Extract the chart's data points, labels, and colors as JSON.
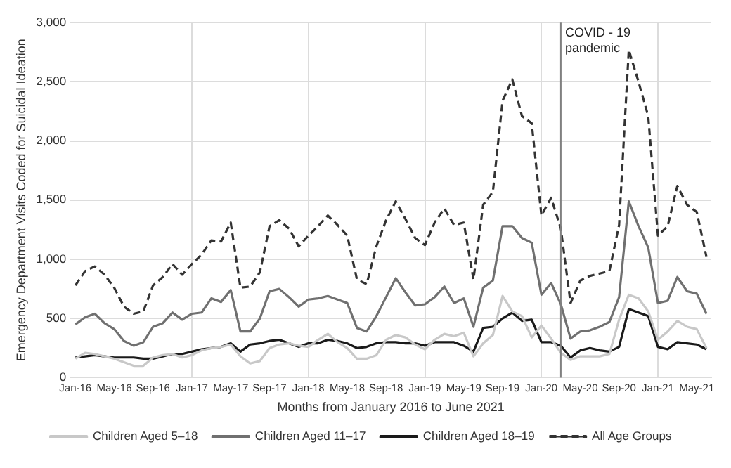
{
  "chart_data": {
    "type": "line",
    "xlabel": "Months from January 2016 to June 2021",
    "ylabel": "Emergency Department Visits Coded for Suicidal Ideation",
    "x": [
      "2016-01",
      "2016-02",
      "2016-03",
      "2016-04",
      "2016-05",
      "2016-06",
      "2016-07",
      "2016-08",
      "2016-09",
      "2016-10",
      "2016-11",
      "2016-12",
      "2017-01",
      "2017-02",
      "2017-03",
      "2017-04",
      "2017-05",
      "2017-06",
      "2017-07",
      "2017-08",
      "2017-09",
      "2017-10",
      "2017-11",
      "2017-12",
      "2018-01",
      "2018-02",
      "2018-03",
      "2018-04",
      "2018-05",
      "2018-06",
      "2018-07",
      "2018-08",
      "2018-09",
      "2018-10",
      "2018-11",
      "2018-12",
      "2019-01",
      "2019-02",
      "2019-03",
      "2019-04",
      "2019-05",
      "2019-06",
      "2019-07",
      "2019-08",
      "2019-09",
      "2019-10",
      "2019-11",
      "2019-12",
      "2020-01",
      "2020-02",
      "2020-03",
      "2020-04",
      "2020-05",
      "2020-06",
      "2020-07",
      "2020-08",
      "2020-09",
      "2020-10",
      "2020-11",
      "2020-12",
      "2021-01",
      "2021-02",
      "2021-03",
      "2021-04",
      "2021-05",
      "2021-06"
    ],
    "series": [
      {
        "name": "Children Aged 5–18",
        "color": "#c8c8c8",
        "line_style": "solid",
        "values": [
          160,
          210,
          200,
          180,
          160,
          130,
          100,
          100,
          170,
          190,
          200,
          170,
          190,
          230,
          250,
          260,
          280,
          180,
          120,
          140,
          250,
          280,
          290,
          270,
          260,
          320,
          370,
          300,
          250,
          160,
          160,
          190,
          320,
          360,
          340,
          280,
          240,
          320,
          370,
          350,
          380,
          180,
          290,
          360,
          690,
          560,
          520,
          340,
          440,
          330,
          210,
          150,
          180,
          180,
          180,
          200,
          490,
          700,
          670,
          560,
          320,
          390,
          480,
          430,
          410,
          250
        ]
      },
      {
        "name": "Children Aged 11–17",
        "color": "#707070",
        "line_style": "solid",
        "values": [
          450,
          510,
          540,
          460,
          410,
          310,
          270,
          300,
          430,
          460,
          550,
          490,
          540,
          550,
          670,
          640,
          740,
          390,
          390,
          500,
          730,
          750,
          680,
          600,
          660,
          670,
          690,
          660,
          630,
          420,
          390,
          520,
          680,
          840,
          720,
          610,
          620,
          680,
          770,
          630,
          670,
          430,
          760,
          820,
          1280,
          1280,
          1180,
          1140,
          700,
          800,
          620,
          330,
          390,
          400,
          430,
          470,
          680,
          1490,
          1280,
          1100,
          630,
          650,
          850,
          730,
          710,
          540
        ]
      },
      {
        "name": "Children Aged 18–19",
        "color": "#1a1a1a",
        "line_style": "solid",
        "values": [
          170,
          180,
          190,
          180,
          170,
          170,
          170,
          160,
          160,
          180,
          200,
          200,
          220,
          240,
          250,
          260,
          290,
          220,
          280,
          290,
          310,
          320,
          290,
          260,
          290,
          290,
          320,
          310,
          290,
          250,
          260,
          290,
          300,
          300,
          290,
          290,
          270,
          300,
          300,
          300,
          270,
          220,
          420,
          430,
          500,
          550,
          480,
          490,
          300,
          300,
          270,
          170,
          230,
          250,
          230,
          220,
          260,
          580,
          550,
          520,
          260,
          240,
          300,
          290,
          280,
          240
        ]
      },
      {
        "name": "All Age Groups",
        "color": "#333333",
        "line_style": "dashed",
        "values": [
          780,
          900,
          940,
          870,
          760,
          600,
          540,
          560,
          780,
          850,
          960,
          870,
          960,
          1040,
          1160,
          1150,
          1310,
          760,
          770,
          890,
          1280,
          1330,
          1260,
          1110,
          1200,
          1280,
          1370,
          1290,
          1200,
          830,
          790,
          1110,
          1330,
          1490,
          1340,
          1180,
          1120,
          1310,
          1430,
          1290,
          1310,
          830,
          1460,
          1570,
          2340,
          2520,
          2210,
          2150,
          1370,
          1520,
          1260,
          630,
          820,
          860,
          880,
          900,
          1290,
          2770,
          2500,
          2210,
          1200,
          1280,
          1620,
          1460,
          1400,
          1020
        ]
      }
    ],
    "xlim": [
      "2015-12-16",
      "2021-06-16"
    ],
    "xticks": [
      {
        "value": "2016-01",
        "label": "Jan-16"
      },
      {
        "value": "2016-05",
        "label": "May-16"
      },
      {
        "value": "2016-09",
        "label": "Sep-16"
      },
      {
        "value": "2017-01",
        "label": "Jan-17"
      },
      {
        "value": "2017-05",
        "label": "May-17"
      },
      {
        "value": "2017-09",
        "label": "Sep-17"
      },
      {
        "value": "2018-01",
        "label": "Jan-18"
      },
      {
        "value": "2018-05",
        "label": "May-18"
      },
      {
        "value": "2018-09",
        "label": "Sep-18"
      },
      {
        "value": "2019-01",
        "label": "Jan-19"
      },
      {
        "value": "2019-05",
        "label": "May-19"
      },
      {
        "value": "2019-09",
        "label": "Sep-19"
      },
      {
        "value": "2020-01",
        "label": "Jan-20"
      },
      {
        "value": "2020-05",
        "label": "May-20"
      },
      {
        "value": "2020-09",
        "label": "Sep-20"
      },
      {
        "value": "2021-01",
        "label": "Jan-21"
      },
      {
        "value": "2021-05",
        "label": "May-21"
      }
    ],
    "ylim": [
      0,
      3000
    ],
    "yticks": [
      {
        "value": 0,
        "label": "0"
      },
      {
        "value": 500,
        "label": "500"
      },
      {
        "value": 1000,
        "label": "1,000"
      },
      {
        "value": 1500,
        "label": "1,500"
      },
      {
        "value": 2000,
        "label": "2,000"
      },
      {
        "value": 2500,
        "label": "2,500"
      },
      {
        "value": 3000,
        "label": "3,000"
      }
    ],
    "ref_lines": [
      {
        "axis": "x",
        "value": "2020-03",
        "label": "COVID - 19 pandemic",
        "color": "#808080"
      }
    ],
    "grid": true,
    "legend": "bottom",
    "marker": "none"
  }
}
